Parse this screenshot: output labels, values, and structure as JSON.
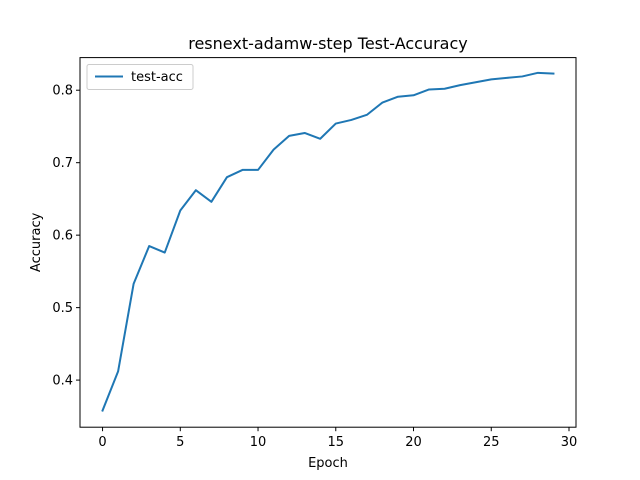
{
  "chart_data": {
    "type": "line",
    "title": "resnext-adamw-step  Test-Accuracy",
    "xlabel": "Epoch",
    "ylabel": "Accuracy",
    "xlim": [
      -1.45,
      30.45
    ],
    "ylim": [
      0.335,
      0.845
    ],
    "xticks": [
      0,
      5,
      10,
      15,
      20,
      25,
      30
    ],
    "yticks": [
      0.4,
      0.5,
      0.6,
      0.7,
      0.8
    ],
    "grid": false,
    "legend_position": "upper-left",
    "series": [
      {
        "name": "test-acc",
        "color": "#1f77b4",
        "x": [
          0,
          1,
          2,
          3,
          4,
          5,
          6,
          7,
          8,
          9,
          10,
          11,
          12,
          13,
          14,
          15,
          16,
          17,
          18,
          19,
          20,
          21,
          22,
          23,
          24,
          25,
          26,
          27,
          28,
          29
        ],
        "y": [
          0.358,
          0.412,
          0.533,
          0.585,
          0.576,
          0.634,
          0.662,
          0.646,
          0.68,
          0.69,
          0.69,
          0.718,
          0.737,
          0.741,
          0.733,
          0.754,
          0.759,
          0.766,
          0.783,
          0.791,
          0.793,
          0.801,
          0.802,
          0.807,
          0.811,
          0.815,
          0.817,
          0.819,
          0.824,
          0.823
        ]
      }
    ]
  }
}
